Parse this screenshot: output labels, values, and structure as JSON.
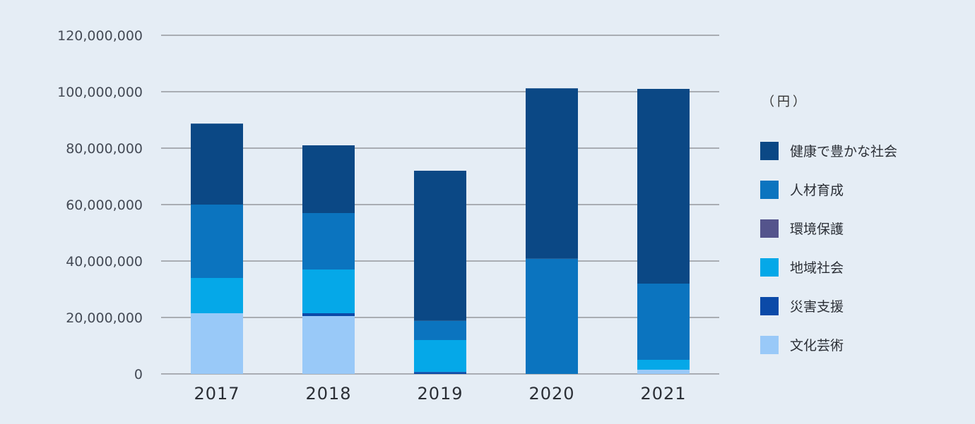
{
  "chart_data": {
    "type": "bar",
    "stacked": true,
    "categories": [
      "2017",
      "2018",
      "2019",
      "2020",
      "2021"
    ],
    "unit": "（円）",
    "ylim": [
      0,
      120000000
    ],
    "yticks": [
      0,
      20000000,
      40000000,
      60000000,
      80000000,
      100000000,
      120000000
    ],
    "ytick_labels": [
      "0",
      "20,000,000",
      "40,000,000",
      "60,000,000",
      "80,000,000",
      "100,000,000",
      "120,000,000"
    ],
    "grid": true,
    "legend_position": "right",
    "series": [
      {
        "name": "文化芸術",
        "color": "#99c9f8",
        "values": [
          21500000,
          20500000,
          0,
          0,
          1500000
        ]
      },
      {
        "name": "災害支援",
        "color": "#0b4aa8",
        "values": [
          0,
          1000000,
          700000,
          0,
          0
        ]
      },
      {
        "name": "地域社会",
        "color": "#05a8e8",
        "values": [
          12500000,
          15500000,
          11300000,
          0,
          3500000
        ]
      },
      {
        "name": "環境保護",
        "color": "#54548c",
        "values": [
          0,
          0,
          0,
          0,
          0
        ]
      },
      {
        "name": "人材育成",
        "color": "#0b74bf",
        "values": [
          26000000,
          20000000,
          6800000,
          40800000,
          27000000
        ]
      },
      {
        "name": "健康で豊かな社会",
        "color": "#0b4885",
        "values": [
          28700000,
          24000000,
          53200000,
          60400000,
          69000000
        ]
      }
    ]
  }
}
